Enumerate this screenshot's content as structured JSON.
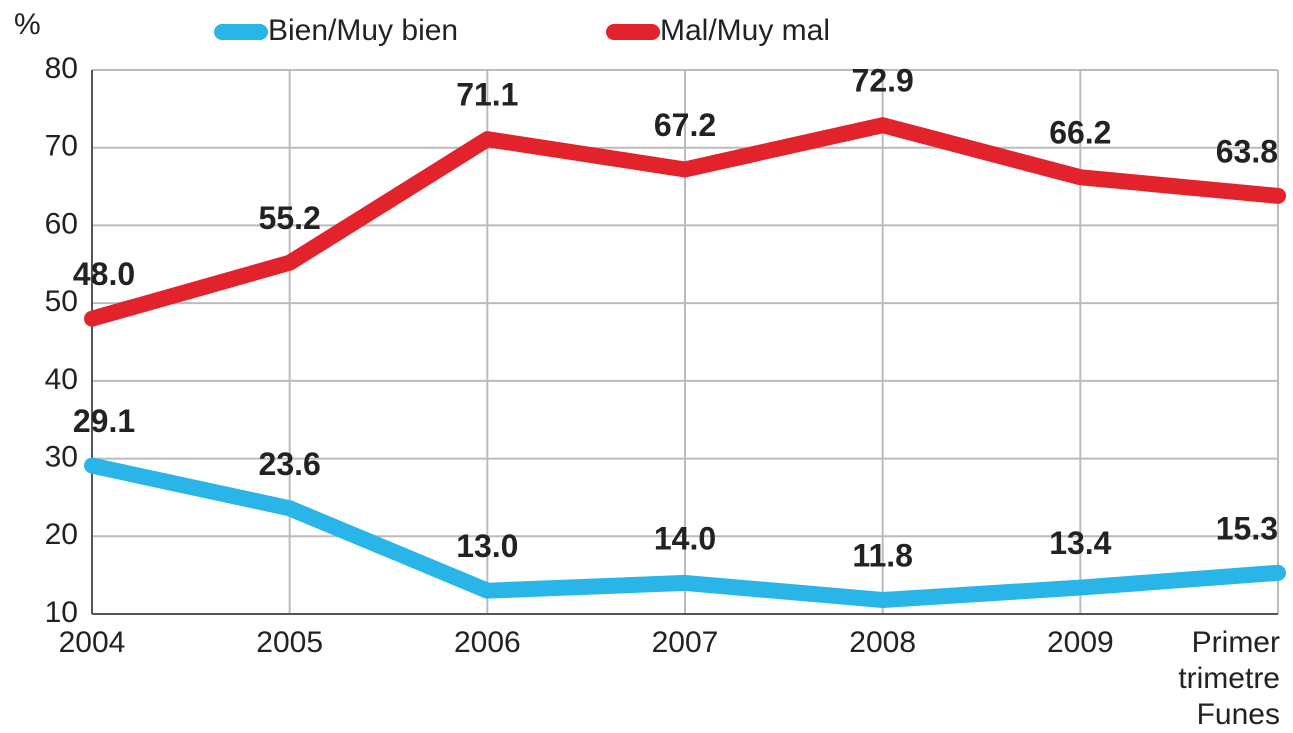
{
  "chart_data": {
    "type": "line",
    "y_axis_label": "%",
    "categories": [
      "2004",
      "2005",
      "2006",
      "2007",
      "2008",
      "2009",
      "Primer trimetre Funes"
    ],
    "series": [
      {
        "name": "Bien/Muy bien",
        "color": "#29b5e8",
        "values": [
          29.1,
          23.6,
          13.0,
          14.0,
          11.8,
          13.4,
          15.3
        ],
        "value_labels": [
          "29.1",
          "23.6",
          "13.0",
          "14.0",
          "11.8",
          "13.4",
          "15.3"
        ]
      },
      {
        "name": "Mal/Muy mal",
        "color": "#e3232c",
        "values": [
          48.0,
          55.2,
          71.1,
          67.2,
          72.9,
          66.2,
          63.8
        ],
        "value_labels": [
          "48.0",
          "55.2",
          "71.1",
          "67.2",
          "72.9",
          "66.2",
          "63.8"
        ]
      }
    ],
    "ylim": [
      10,
      80
    ],
    "yticks": [
      10,
      20,
      30,
      40,
      50,
      60,
      70,
      80
    ],
    "grid": true
  }
}
